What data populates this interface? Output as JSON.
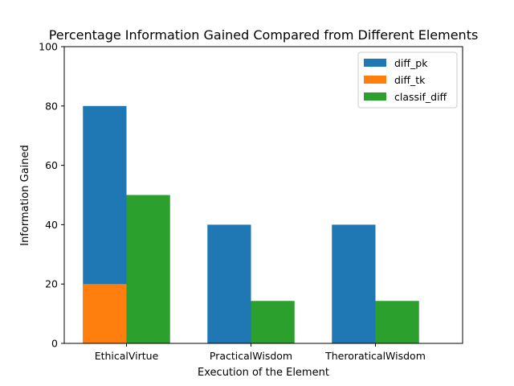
{
  "chart_data": {
    "type": "bar",
    "title": "Percentage Information Gained Compared from Different Elements",
    "xlabel": "Execution of the Element",
    "ylabel": "Information Gained",
    "ylim": [
      0,
      100
    ],
    "yticks": [
      0,
      20,
      40,
      60,
      80,
      100
    ],
    "categories": [
      "EthicalVirtue",
      "PracticalWisdom",
      "TheroraticalWisdom"
    ],
    "series": [
      {
        "name": "diff_pk",
        "values": [
          80,
          40,
          40
        ],
        "color": "#1f77b4",
        "slot": "left"
      },
      {
        "name": "diff_tk",
        "values": [
          20,
          0,
          0
        ],
        "color": "#ff7f0e",
        "slot": "left"
      },
      {
        "name": "classif_diff",
        "values": [
          50,
          14.3,
          14.3
        ],
        "color": "#2ca02c",
        "slot": "right"
      }
    ],
    "grid": false,
    "legend_position": "top-right"
  }
}
